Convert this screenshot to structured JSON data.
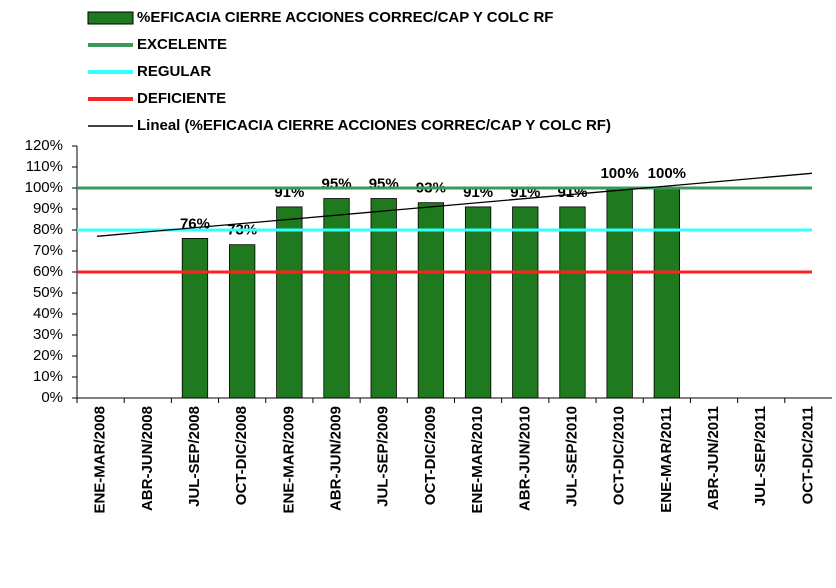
{
  "chart_data": {
    "type": "bar",
    "series_name": "%EFICACIA CIERRE ACCIONES CORREC/CAP Y COLC RF",
    "color": "#1f7a1f",
    "categories": [
      "ENE-MAR/2008",
      "ABR-JUN/2008",
      "JUL-SEP/2008",
      "OCT-DIC/2008",
      "ENE-MAR/2009",
      "ABR-JUN/2009",
      "JUL-SEP/2009",
      "OCT-DIC/2009",
      "ENE-MAR/2010",
      "ABR-JUN/2010",
      "JUL-SEP/2010",
      "OCT-DIC/2010",
      "ENE-MAR/2011",
      "ABR-JUN/2011",
      "JUL-SEP/2011",
      "OCT-DIC/2011"
    ],
    "values": [
      null,
      null,
      76,
      73,
      91,
      95,
      95,
      93,
      91,
      91,
      91,
      100,
      100,
      null,
      null,
      null
    ],
    "value_labels": [
      null,
      null,
      "76%",
      "73%",
      "91%",
      "95%",
      "95%",
      "93%",
      "91%",
      "91%",
      "91%",
      "100%",
      "100%",
      null,
      null,
      null
    ],
    "reference_lines": [
      {
        "name": "EXCELENTE",
        "color": "#3a9a5a",
        "value": 100
      },
      {
        "name": "REGULAR",
        "color": "#33ffff",
        "value": 80
      },
      {
        "name": "DEFICIENTE",
        "color": "#ff2020",
        "value": 60
      }
    ],
    "trendline": {
      "name": "Lineal (%EFICACIA CIERRE ACCIONES CORREC/CAP Y COLC RF)",
      "color": "#000000",
      "values": [
        77,
        107
      ]
    },
    "ylim": [
      0,
      120
    ],
    "yticks": [
      {
        "value": 0,
        "label": "0%"
      },
      {
        "value": 10,
        "label": "10%"
      },
      {
        "value": 20,
        "label": "20%"
      },
      {
        "value": 30,
        "label": "30%"
      },
      {
        "value": 40,
        "label": "40%"
      },
      {
        "value": 50,
        "label": "50%"
      },
      {
        "value": 60,
        "label": "60%"
      },
      {
        "value": 70,
        "label": "70%"
      },
      {
        "value": 80,
        "label": "80%"
      },
      {
        "value": 90,
        "label": "90%"
      },
      {
        "value": 100,
        "label": "100%"
      },
      {
        "value": 110,
        "label": "110%"
      },
      {
        "value": 120,
        "label": "120%"
      }
    ]
  }
}
